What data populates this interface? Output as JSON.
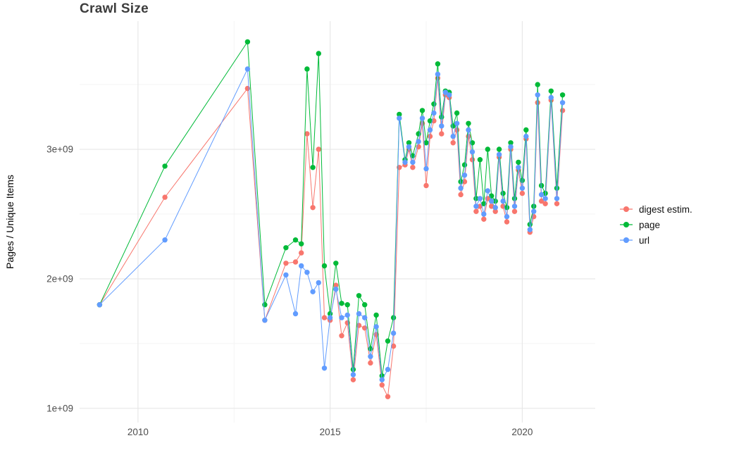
{
  "chart_data": {
    "type": "line",
    "title": "Crawl Size",
    "ylabel": "Pages / Unique Items",
    "xlabel": "",
    "legend_position": "right",
    "grid": true,
    "background": "#ffffff",
    "y_unit": "value in billions (1e9)",
    "x_unit": "year (decimal)",
    "xlim": [
      2008.48,
      2021.9
    ],
    "ylim": [
      0.89,
      3.99
    ],
    "x_ticks": [
      {
        "value": 2010,
        "label": "2010"
      },
      {
        "value": 2015,
        "label": "2015"
      },
      {
        "value": 2020,
        "label": "2020"
      }
    ],
    "x_minor": [
      2012.5,
      2017.5
    ],
    "y_ticks": [
      {
        "value": 1,
        "label": "1e+09"
      },
      {
        "value": 2,
        "label": "2e+09"
      },
      {
        "value": 3,
        "label": "3e+09"
      }
    ],
    "y_minor": [
      1.5,
      2.5,
      3.5
    ],
    "colors": {
      "grid_major": "#e6e6e6",
      "grid_minor": "#f3f3f3",
      "tick_label": "#4d4d4d",
      "title": "#3d3d3d",
      "text": "#000000"
    },
    "x": [
      2009.0,
      2010.7,
      2012.85,
      2013.3,
      2013.85,
      2014.1,
      2014.25,
      2014.4,
      2014.55,
      2014.7,
      2014.85,
      2015.0,
      2015.15,
      2015.3,
      2015.45,
      2015.6,
      2015.75,
      2015.9,
      2016.05,
      2016.2,
      2016.35,
      2016.5,
      2016.65,
      2016.8,
      2016.95,
      2017.05,
      2017.15,
      2017.3,
      2017.4,
      2017.5,
      2017.6,
      2017.7,
      2017.8,
      2017.9,
      2018.0,
      2018.1,
      2018.2,
      2018.3,
      2018.4,
      2018.5,
      2018.6,
      2018.7,
      2018.8,
      2018.9,
      2019.0,
      2019.1,
      2019.2,
      2019.3,
      2019.4,
      2019.5,
      2019.6,
      2019.7,
      2019.8,
      2019.9,
      2020.0,
      2020.1,
      2020.2,
      2020.3,
      2020.4,
      2020.5,
      2020.6,
      2020.75,
      2020.9,
      2021.05
    ],
    "series": [
      {
        "id": "digest",
        "name": "digest estim.",
        "color": "#F8766D",
        "values": [
          1.8,
          2.63,
          3.47,
          1.68,
          2.12,
          2.13,
          2.2,
          3.12,
          2.55,
          3.0,
          1.7,
          1.68,
          1.95,
          1.56,
          1.66,
          1.22,
          1.64,
          1.62,
          1.35,
          1.57,
          1.18,
          1.09,
          1.48,
          2.86,
          2.88,
          3.0,
          2.86,
          3.02,
          3.2,
          2.72,
          3.1,
          3.22,
          3.55,
          3.12,
          3.42,
          3.4,
          3.05,
          3.15,
          2.65,
          2.75,
          3.1,
          2.92,
          2.52,
          2.56,
          2.46,
          2.62,
          2.56,
          2.52,
          2.94,
          2.56,
          2.44,
          3.0,
          2.52,
          2.84,
          2.66,
          3.08,
          2.36,
          2.48,
          3.36,
          2.6,
          2.58,
          3.38,
          2.58,
          3.3
        ]
      },
      {
        "id": "page",
        "name": "page",
        "color": "#00BA38",
        "values": [
          1.8,
          2.87,
          3.83,
          1.8,
          2.24,
          2.3,
          2.27,
          3.62,
          2.86,
          3.74,
          2.1,
          1.73,
          2.12,
          1.81,
          1.8,
          1.3,
          1.87,
          1.8,
          1.46,
          1.72,
          1.25,
          1.52,
          1.7,
          3.27,
          2.92,
          3.05,
          2.95,
          3.12,
          3.3,
          3.05,
          3.22,
          3.35,
          3.66,
          3.25,
          3.45,
          3.44,
          3.18,
          3.28,
          2.75,
          2.88,
          3.2,
          3.05,
          2.62,
          2.92,
          2.58,
          3.0,
          2.64,
          2.6,
          3.0,
          2.66,
          2.55,
          3.05,
          2.62,
          2.9,
          2.76,
          3.15,
          2.42,
          2.56,
          3.5,
          2.72,
          2.66,
          3.45,
          2.7,
          3.42
        ]
      },
      {
        "id": "url",
        "name": "url",
        "color": "#619CFF",
        "values": [
          1.8,
          2.3,
          3.62,
          1.68,
          2.03,
          1.73,
          2.1,
          2.05,
          1.9,
          1.97,
          1.31,
          1.7,
          1.92,
          1.7,
          1.72,
          1.26,
          1.73,
          1.7,
          1.4,
          1.63,
          1.22,
          1.3,
          1.58,
          3.24,
          2.9,
          3.02,
          2.9,
          3.06,
          3.24,
          2.85,
          3.15,
          3.28,
          3.58,
          3.18,
          3.44,
          3.42,
          3.1,
          3.2,
          2.7,
          2.8,
          3.15,
          2.98,
          2.56,
          2.62,
          2.5,
          2.68,
          2.6,
          2.55,
          2.96,
          2.6,
          2.48,
          3.02,
          2.56,
          2.86,
          2.7,
          3.1,
          2.38,
          2.52,
          3.42,
          2.65,
          2.62,
          3.4,
          2.62,
          3.36
        ]
      }
    ]
  }
}
